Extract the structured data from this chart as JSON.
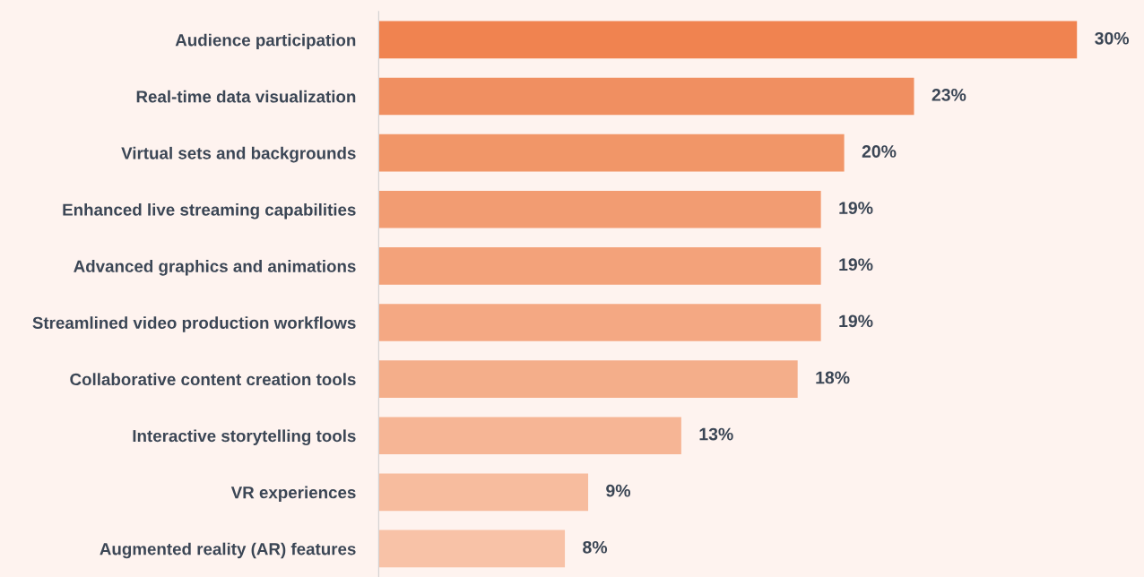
{
  "chart_data": {
    "type": "bar",
    "orientation": "horizontal",
    "data_labels": true,
    "categories": [
      "Audience participation",
      "Real-time data visualization",
      "Virtual sets and backgrounds",
      "Enhanced live streaming capabilities",
      "Advanced graphics and animations",
      "Streamlined video production workflows",
      "Collaborative content creation tools",
      "Interactive storytelling tools",
      "VR experiences",
      "Augmented reality (AR) features"
    ],
    "values": [
      30,
      23,
      20,
      19,
      19,
      19,
      18,
      13,
      9,
      8
    ],
    "value_labels": [
      "30%",
      "23%",
      "20%",
      "19%",
      "19%",
      "19%",
      "18%",
      "13%",
      "9%",
      "8%"
    ],
    "colors": [
      "#f08350",
      "#f08f61",
      "#f19668",
      "#f29c72",
      "#f3a27a",
      "#f4a883",
      "#f4ae8a",
      "#f6b595",
      "#f7bc9e",
      "#f8c2a7"
    ]
  }
}
